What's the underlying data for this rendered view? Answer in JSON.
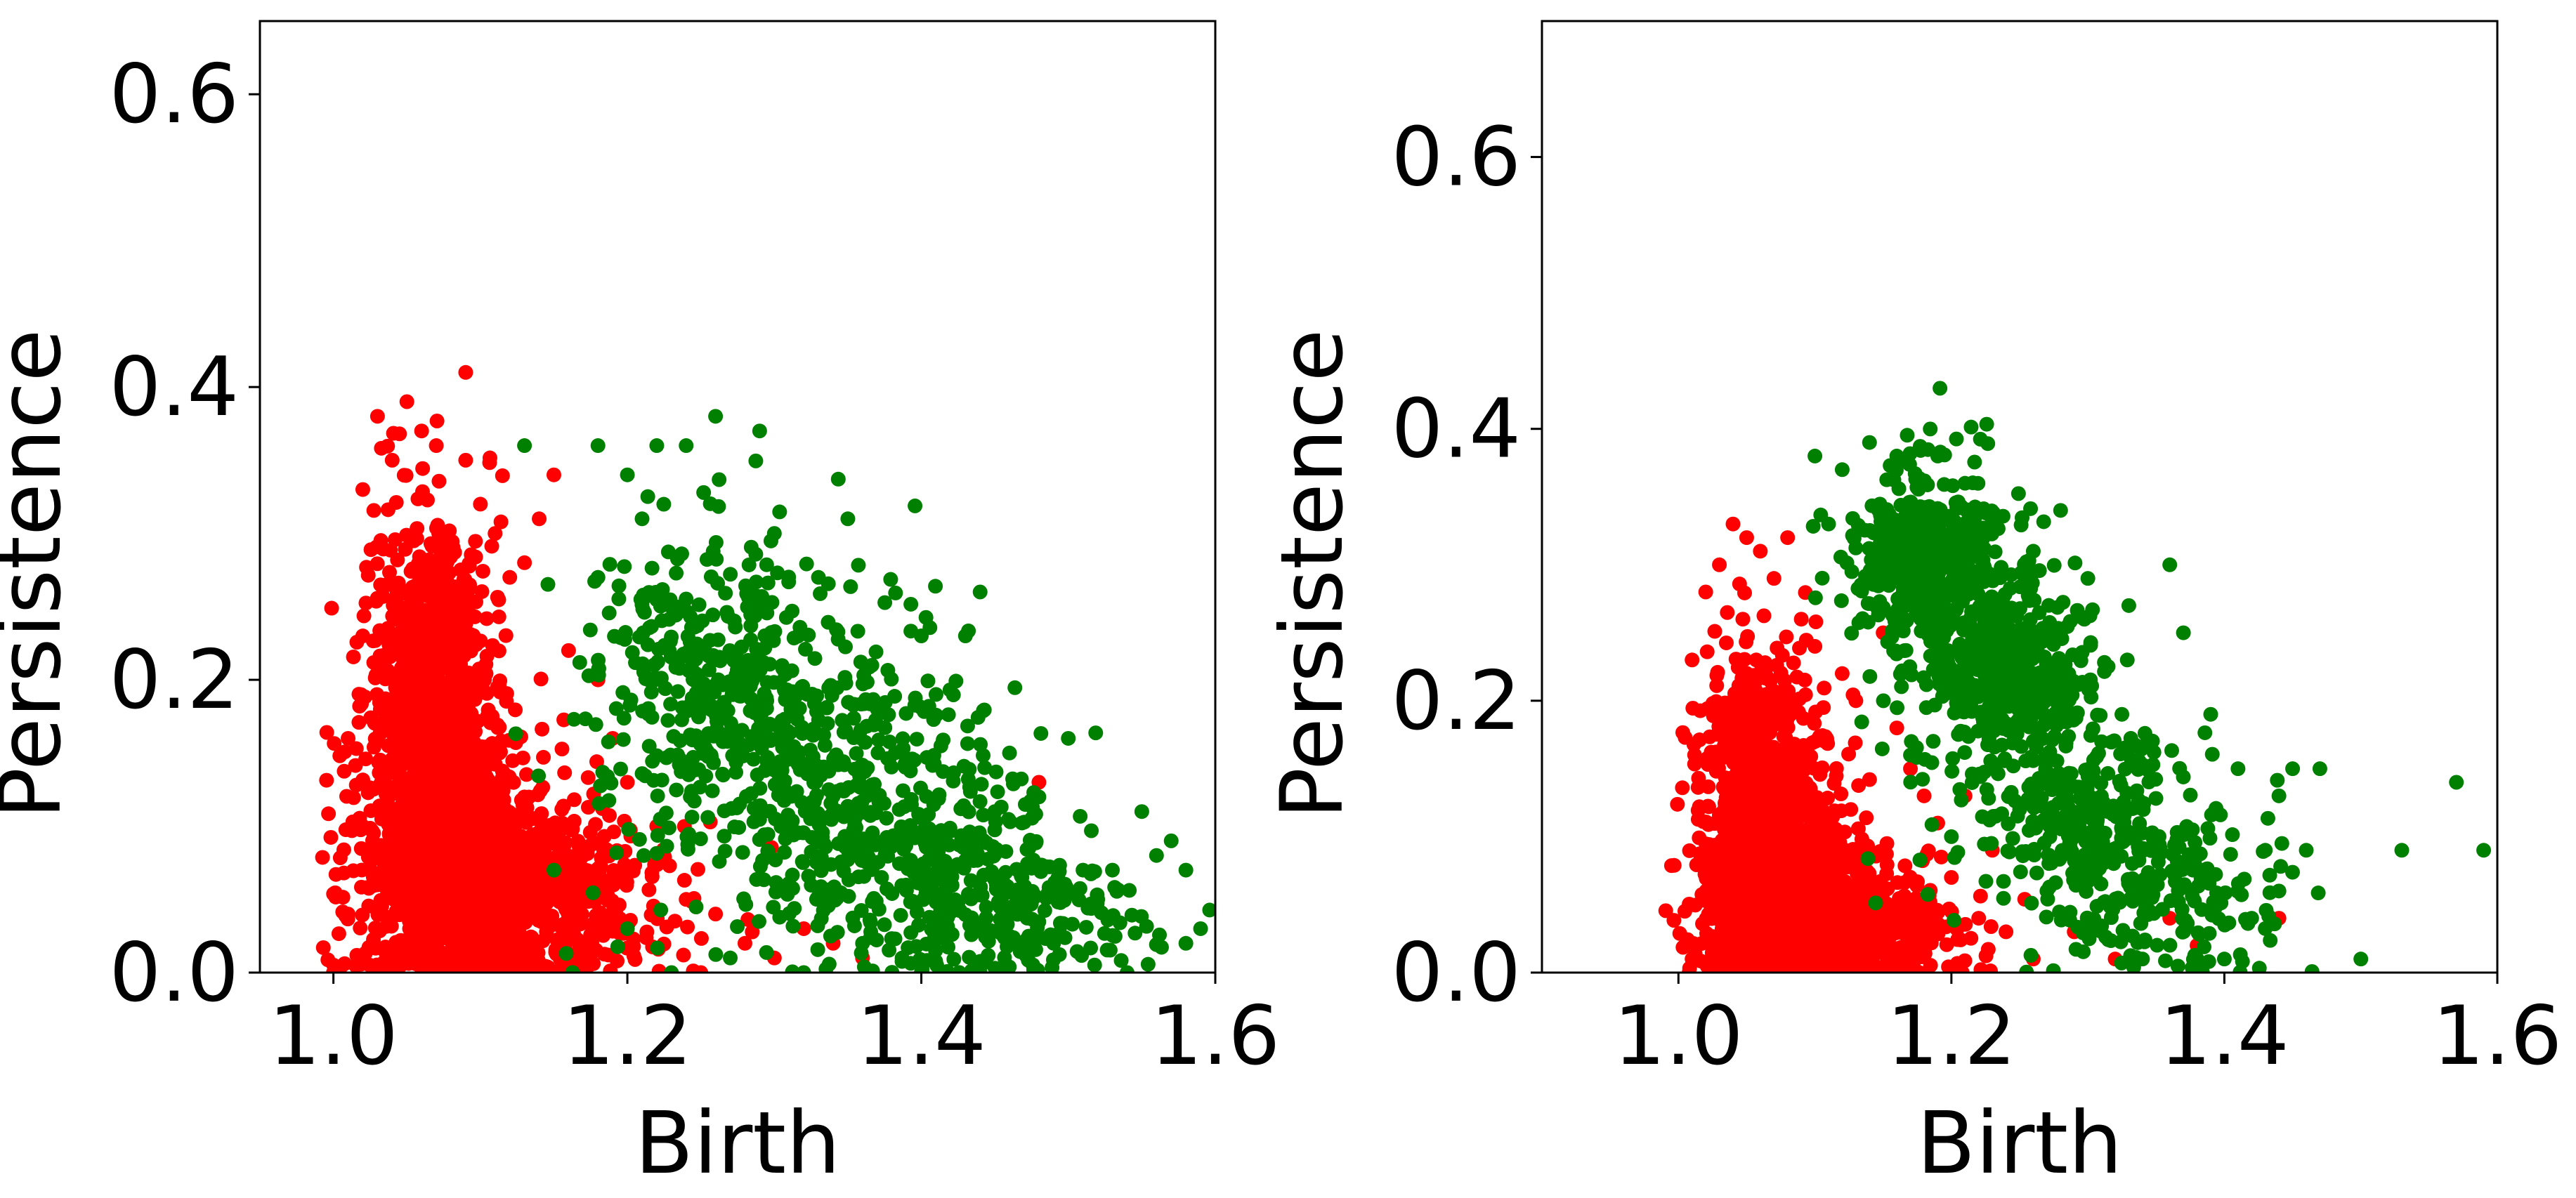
{
  "chart_data": [
    {
      "type": "scatter",
      "xlabel": "Birth",
      "ylabel": "Persistence",
      "xlim": [
        0.95,
        1.6
      ],
      "ylim": [
        0.0,
        0.65
      ],
      "xticks": [
        1.0,
        1.2,
        1.4,
        1.6
      ],
      "xtick_labels": [
        "1.0",
        "1.2",
        "1.4",
        "1.6"
      ],
      "yticks": [
        0.0,
        0.2,
        0.4,
        0.6
      ],
      "ytick_labels": [
        "0.0",
        "0.2",
        "0.4",
        "0.6"
      ],
      "grid": false,
      "legend": "none",
      "series": [
        {
          "color": "#ff0000",
          "points": [
            [
              1.0,
              0.0
            ],
            [
              1.01,
              0.04
            ],
            [
              1.01,
              0.16
            ],
            [
              1.02,
              0.23
            ],
            [
              1.02,
              0.33
            ],
            [
              1.03,
              0.38
            ],
            [
              1.04,
              0.35
            ],
            [
              1.05,
              0.39
            ],
            [
              1.06,
              0.37
            ],
            [
              1.07,
              0.36
            ],
            [
              1.09,
              0.41
            ],
            [
              1.09,
              0.35
            ],
            [
              1.1,
              0.32
            ],
            [
              1.11,
              0.3
            ],
            [
              1.12,
              0.27
            ],
            [
              1.13,
              0.28
            ],
            [
              1.14,
              0.31
            ],
            [
              1.15,
              0.34
            ],
            [
              1.16,
              0.22
            ],
            [
              1.18,
              0.2
            ],
            [
              1.19,
              0.16
            ],
            [
              1.2,
              0.13
            ],
            [
              1.22,
              0.1
            ],
            [
              1.24,
              0.05
            ],
            [
              1.26,
              0.04
            ],
            [
              1.28,
              0.02
            ],
            [
              1.3,
              0.01
            ],
            [
              1.32,
              0.03
            ],
            [
              1.34,
              0.02
            ],
            [
              1.36,
              0.01
            ],
            [
              1.48,
              0.13
            ],
            [
              1.25,
              0.0
            ],
            [
              1.13,
              0.12
            ],
            [
              1.11,
              0.09
            ],
            [
              1.05,
              0.22
            ],
            [
              1.05,
              0.13
            ],
            [
              1.06,
              0.26
            ],
            [
              1.08,
              0.17
            ],
            [
              1.04,
              0.06
            ],
            [
              1.02,
              0.1
            ]
          ],
          "dense_clusters": [
            {
              "center": [
                1.07,
                0.13
              ],
              "spread": [
                0.025,
                0.09
              ],
              "count": 1100
            },
            {
              "center": [
                1.1,
                0.06
              ],
              "spread": [
                0.04,
                0.045
              ],
              "count": 900
            },
            {
              "center": [
                1.06,
                0.24
              ],
              "spread": [
                0.018,
                0.045
              ],
              "count": 220
            },
            {
              "center": [
                1.16,
                0.05
              ],
              "spread": [
                0.045,
                0.04
              ],
              "count": 260
            }
          ]
        },
        {
          "color": "#008000",
          "points": [
            [
              1.13,
              0.36
            ],
            [
              1.18,
              0.36
            ],
            [
              1.2,
              0.34
            ],
            [
              1.22,
              0.36
            ],
            [
              1.24,
              0.36
            ],
            [
              1.26,
              0.38
            ],
            [
              1.29,
              0.37
            ],
            [
              1.35,
              0.31
            ],
            [
              1.4,
              0.23
            ],
            [
              1.43,
              0.23
            ],
            [
              1.44,
              0.26
            ],
            [
              1.46,
              0.15
            ],
            [
              1.48,
              0.12
            ],
            [
              1.5,
              0.16
            ],
            [
              1.51,
              0.07
            ],
            [
              1.53,
              0.07
            ],
            [
              1.55,
              0.11
            ],
            [
              1.56,
              0.08
            ],
            [
              1.57,
              0.09
            ],
            [
              1.58,
              0.07
            ],
            [
              1.58,
              0.02
            ],
            [
              1.59,
              0.03
            ],
            [
              1.54,
              0.0
            ],
            [
              1.49,
              0.02
            ],
            [
              1.44,
              0.0
            ],
            [
              1.4,
              0.0
            ],
            [
              1.36,
              0.02
            ],
            [
              1.32,
              0.0
            ],
            [
              1.27,
              0.01
            ],
            [
              1.23,
              0.0
            ],
            [
              1.2,
              0.03
            ],
            [
              1.15,
              0.07
            ],
            [
              1.18,
              0.27
            ],
            [
              1.21,
              0.31
            ],
            [
              1.3,
              0.3
            ],
            [
              1.33,
              0.27
            ],
            [
              1.37,
              0.18
            ],
            [
              1.41,
              0.19
            ],
            [
              1.45,
              0.11
            ],
            [
              1.52,
              0.05
            ]
          ],
          "dense_clusters": [
            {
              "center": [
                1.3,
                0.15
              ],
              "spread": [
                0.055,
                0.07
              ],
              "count": 420
            },
            {
              "center": [
                1.4,
                0.08
              ],
              "spread": [
                0.05,
                0.055
              ],
              "count": 360
            },
            {
              "center": [
                1.25,
                0.22
              ],
              "spread": [
                0.04,
                0.055
              ],
              "count": 220
            },
            {
              "center": [
                1.48,
                0.04
              ],
              "spread": [
                0.045,
                0.03
              ],
              "count": 140
            }
          ]
        }
      ]
    },
    {
      "type": "scatter",
      "xlabel": "Birth",
      "ylabel": "Persistence",
      "xlim": [
        0.9,
        1.6
      ],
      "ylim": [
        0.0,
        0.7
      ],
      "xticks": [
        1.0,
        1.2,
        1.4,
        1.6
      ],
      "xtick_labels": [
        "1.0",
        "1.2",
        "1.4",
        "1.6"
      ],
      "yticks": [
        0.0,
        0.2,
        0.4,
        0.6
      ],
      "ytick_labels": [
        "0.0",
        "0.2",
        "0.4",
        "0.6"
      ],
      "grid": false,
      "legend": "none",
      "series": [
        {
          "color": "#ff0000",
          "points": [
            [
              1.01,
              0.01
            ],
            [
              1.01,
              0.23
            ],
            [
              1.02,
              0.28
            ],
            [
              1.03,
              0.3
            ],
            [
              1.04,
              0.33
            ],
            [
              1.05,
              0.32
            ],
            [
              1.06,
              0.31
            ],
            [
              1.07,
              0.29
            ],
            [
              1.08,
              0.32
            ],
            [
              1.09,
              0.26
            ],
            [
              1.1,
              0.24
            ],
            [
              1.12,
              0.22
            ],
            [
              1.13,
              0.2
            ],
            [
              1.15,
              0.25
            ],
            [
              1.16,
              0.18
            ],
            [
              1.17,
              0.15
            ],
            [
              1.18,
              0.13
            ],
            [
              1.19,
              0.11
            ],
            [
              1.2,
              0.07
            ],
            [
              1.22,
              0.04
            ],
            [
              1.24,
              0.03
            ],
            [
              1.26,
              0.01
            ],
            [
              1.29,
              0.03
            ],
            [
              1.32,
              0.01
            ],
            [
              1.36,
              0.04
            ],
            [
              1.38,
              0.02
            ],
            [
              1.44,
              0.04
            ],
            [
              1.23,
              0.09
            ],
            [
              1.21,
              0.13
            ],
            [
              1.14,
              0.07
            ]
          ],
          "dense_clusters": [
            {
              "center": [
                1.07,
                0.09
              ],
              "spread": [
                0.025,
                0.06
              ],
              "count": 1000
            },
            {
              "center": [
                1.09,
                0.04
              ],
              "spread": [
                0.035,
                0.035
              ],
              "count": 800
            },
            {
              "center": [
                1.05,
                0.18
              ],
              "spread": [
                0.018,
                0.04
              ],
              "count": 200
            },
            {
              "center": [
                1.14,
                0.03
              ],
              "spread": [
                0.04,
                0.025
              ],
              "count": 220
            }
          ]
        },
        {
          "color": "#008000",
          "points": [
            [
              1.1,
              0.38
            ],
            [
              1.12,
              0.37
            ],
            [
              1.14,
              0.39
            ],
            [
              1.16,
              0.38
            ],
            [
              1.19,
              0.38
            ],
            [
              1.21,
              0.36
            ],
            [
              1.23,
              0.33
            ],
            [
              1.26,
              0.31
            ],
            [
              1.28,
              0.34
            ],
            [
              1.3,
              0.29
            ],
            [
              1.33,
              0.27
            ],
            [
              1.36,
              0.3
            ],
            [
              1.37,
              0.25
            ],
            [
              1.39,
              0.19
            ],
            [
              1.41,
              0.15
            ],
            [
              1.43,
              0.09
            ],
            [
              1.44,
              0.13
            ],
            [
              1.45,
              0.15
            ],
            [
              1.47,
              0.15
            ],
            [
              1.46,
              0.09
            ],
            [
              1.44,
              0.06
            ],
            [
              1.42,
              0.04
            ],
            [
              1.4,
              0.01
            ],
            [
              1.38,
              0.01
            ],
            [
              1.34,
              0.01
            ],
            [
              1.3,
              0.03
            ],
            [
              1.27,
              0.06
            ],
            [
              1.5,
              0.01
            ],
            [
              1.53,
              0.09
            ],
            [
              1.57,
              0.14
            ],
            [
              1.59,
              0.09
            ],
            [
              1.17,
              0.16
            ],
            [
              1.2,
              0.1
            ],
            [
              1.25,
              0.12
            ],
            [
              1.11,
              0.33
            ]
          ],
          "dense_clusters": [
            {
              "center": [
                1.18,
                0.3
              ],
              "spread": [
                0.028,
                0.045
              ],
              "count": 520
            },
            {
              "center": [
                1.24,
                0.22
              ],
              "spread": [
                0.03,
                0.045
              ],
              "count": 420
            },
            {
              "center": [
                1.3,
                0.12
              ],
              "spread": [
                0.045,
                0.055
              ],
              "count": 300
            },
            {
              "center": [
                1.36,
                0.06
              ],
              "spread": [
                0.04,
                0.04
              ],
              "count": 160
            }
          ]
        }
      ]
    }
  ]
}
